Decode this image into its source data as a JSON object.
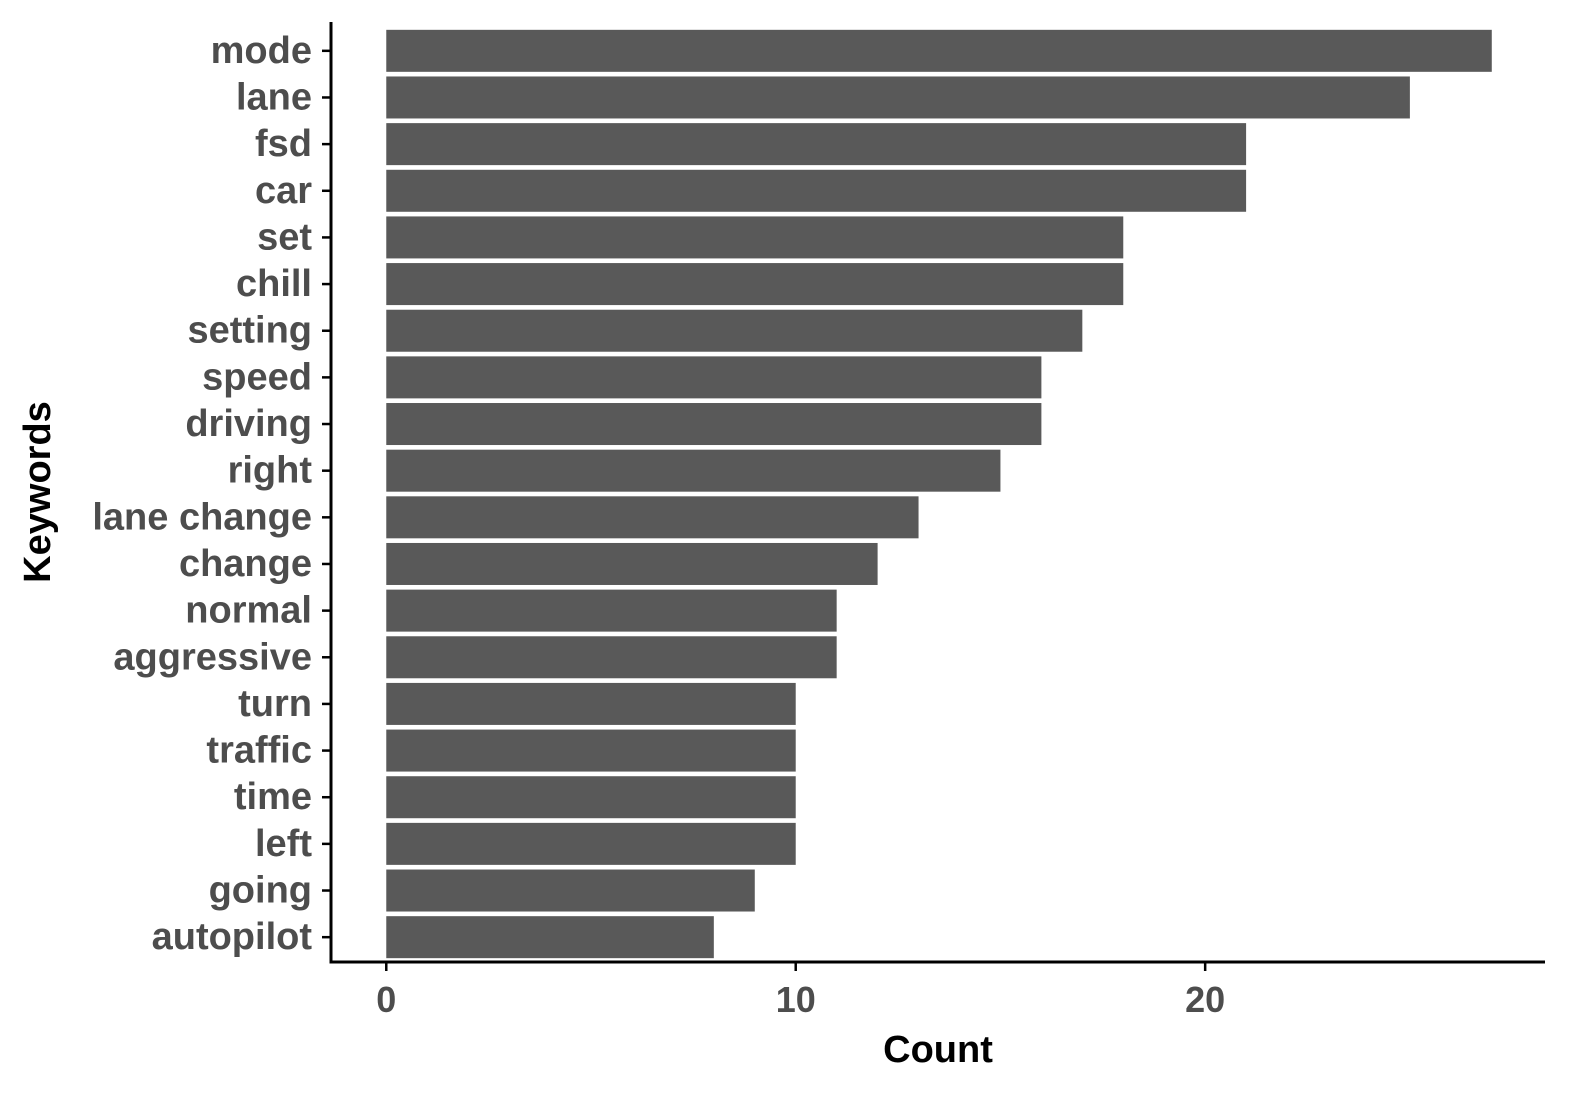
{
  "colors": {
    "bar": "#595959",
    "axis": "#000000",
    "tick_text": "#4d4d4d",
    "background": "#ffffff"
  },
  "chart_data": {
    "type": "bar",
    "orientation": "horizontal",
    "title": "",
    "xlabel": "Count",
    "ylabel": "Keywords",
    "xlim": [
      -1.35,
      28.3
    ],
    "xticks": [
      0,
      10,
      20
    ],
    "grid": false,
    "legend": "none",
    "categories": [
      "mode",
      "lane",
      "fsd",
      "car",
      "set",
      "chill",
      "setting",
      "speed",
      "driving",
      "right",
      "lane change",
      "change",
      "normal",
      "aggressive",
      "turn",
      "traffic",
      "time",
      "left",
      "going",
      "autopilot"
    ],
    "values": [
      27,
      25,
      21,
      21,
      18,
      18,
      17,
      16,
      16,
      15,
      13,
      12,
      11,
      11,
      10,
      10,
      10,
      10,
      9,
      8
    ]
  }
}
